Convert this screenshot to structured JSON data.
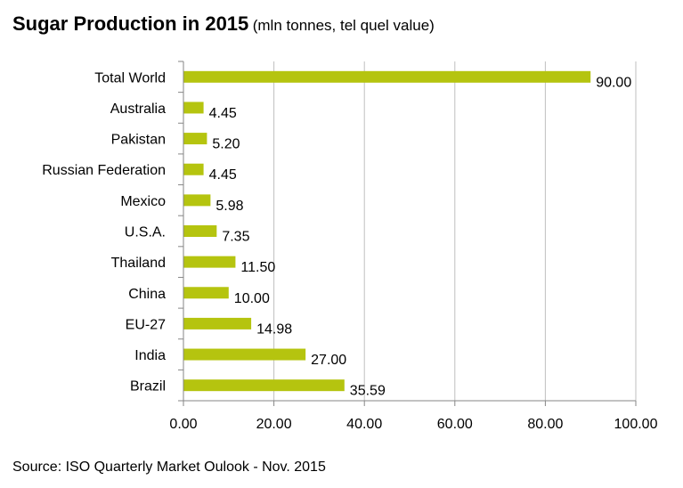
{
  "title": "Sugar Production in 2015",
  "subtitle": "(mln tonnes, tel quel value)",
  "source": "Source: ISO Quarterly Market Oulook - Nov. 2015",
  "colors": {
    "bar": "#b5c40f",
    "grid": "#bfbfbf",
    "axis": "#868686"
  },
  "chart_data": {
    "type": "bar",
    "orientation": "horizontal",
    "title": "Sugar Production in 2015",
    "subtitle": "(mln tonnes, tel quel value)",
    "xlabel": "",
    "ylabel": "",
    "xlim": [
      0,
      100
    ],
    "ticks": [
      "0.00",
      "20.00",
      "40.00",
      "60.00",
      "80.00",
      "100.00"
    ],
    "tick_values": [
      0,
      20,
      40,
      60,
      80,
      100
    ],
    "grid": true,
    "legend": "none",
    "categories": [
      "Total World",
      "Australia",
      "Pakistan",
      "Russian Federation",
      "Mexico",
      "U.S.A.",
      "Thailand",
      "China",
      "EU-27",
      "India",
      "Brazil"
    ],
    "values": [
      90.0,
      4.45,
      5.2,
      4.45,
      5.98,
      7.35,
      11.5,
      10.0,
      14.98,
      27.0,
      35.59
    ],
    "labels": [
      "90.00",
      "4.45",
      "5.20",
      "4.45",
      "5.98",
      "7.35",
      "11.50",
      "10.00",
      "14.98",
      "27.00",
      "35.59"
    ]
  }
}
